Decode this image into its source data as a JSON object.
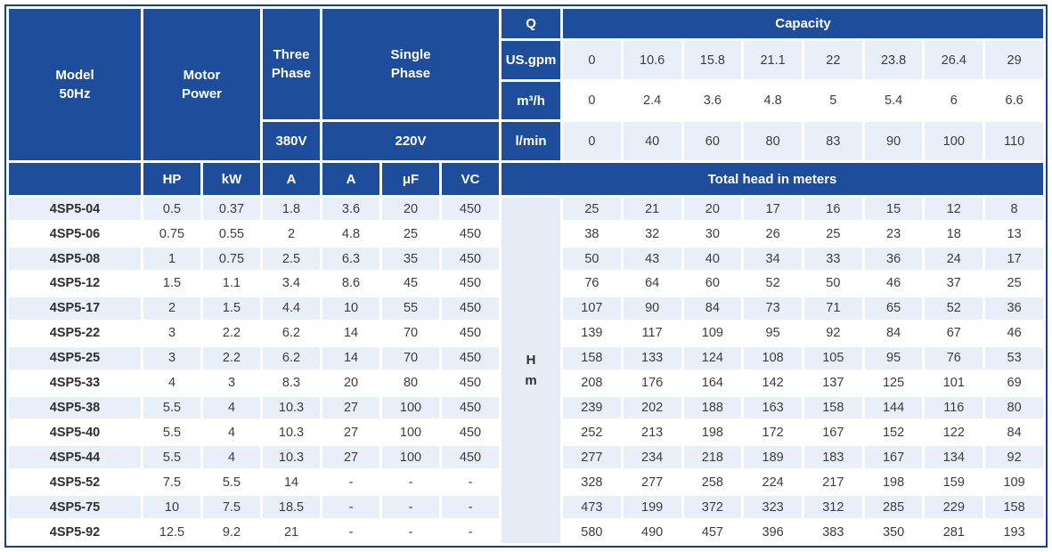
{
  "chart_data": {
    "type": "table",
    "header": {
      "model": [
        "Model",
        "50Hz"
      ],
      "motor_power": [
        "Motor",
        "Power"
      ],
      "three_phase": [
        "Three",
        "Phase"
      ],
      "three_phase_voltage": "380V",
      "single_phase": [
        "Single",
        "Phase"
      ],
      "single_phase_voltage": "220V",
      "q_label": "Q",
      "capacity_label": "Capacity",
      "subcolumns": [
        "HP",
        "kW",
        "A",
        "A",
        "μF",
        "VC"
      ],
      "total_head_label": "Total head in meters",
      "head_unit": [
        "H",
        "m"
      ]
    },
    "flow_rows": [
      {
        "unit": "US.gpm",
        "values": [
          "0",
          "10.6",
          "15.8",
          "21.1",
          "22",
          "23.8",
          "26.4",
          "29"
        ]
      },
      {
        "unit": "m³/h",
        "values": [
          "0",
          "2.4",
          "3.6",
          "4.8",
          "5",
          "5.4",
          "6",
          "6.6"
        ]
      },
      {
        "unit": "l/min",
        "values": [
          "0",
          "40",
          "60",
          "80",
          "83",
          "90",
          "100",
          "110"
        ]
      }
    ],
    "rows": [
      {
        "model": "4SP5-04",
        "hp": "0.5",
        "kw": "0.37",
        "a_380v": "1.8",
        "a_220v": "3.6",
        "uf": "20",
        "vc": "450",
        "head_m": [
          "25",
          "21",
          "20",
          "17",
          "16",
          "15",
          "12",
          "8"
        ]
      },
      {
        "model": "4SP5-06",
        "hp": "0.75",
        "kw": "0.55",
        "a_380v": "2",
        "a_220v": "4.8",
        "uf": "25",
        "vc": "450",
        "head_m": [
          "38",
          "32",
          "30",
          "26",
          "25",
          "23",
          "18",
          "13"
        ]
      },
      {
        "model": "4SP5-08",
        "hp": "1",
        "kw": "0.75",
        "a_380v": "2.5",
        "a_220v": "6.3",
        "uf": "35",
        "vc": "450",
        "head_m": [
          "50",
          "43",
          "40",
          "34",
          "33",
          "36",
          "24",
          "17"
        ]
      },
      {
        "model": "4SP5-12",
        "hp": "1.5",
        "kw": "1.1",
        "a_380v": "3.4",
        "a_220v": "8.6",
        "uf": "45",
        "vc": "450",
        "head_m": [
          "76",
          "64",
          "60",
          "52",
          "50",
          "46",
          "37",
          "25"
        ]
      },
      {
        "model": "4SP5-17",
        "hp": "2",
        "kw": "1.5",
        "a_380v": "4.4",
        "a_220v": "10",
        "uf": "55",
        "vc": "450",
        "head_m": [
          "107",
          "90",
          "84",
          "73",
          "71",
          "65",
          "52",
          "36"
        ]
      },
      {
        "model": "4SP5-22",
        "hp": "3",
        "kw": "2.2",
        "a_380v": "6.2",
        "a_220v": "14",
        "uf": "70",
        "vc": "450",
        "head_m": [
          "139",
          "117",
          "109",
          "95",
          "92",
          "84",
          "67",
          "46"
        ]
      },
      {
        "model": "4SP5-25",
        "hp": "3",
        "kw": "2.2",
        "a_380v": "6.2",
        "a_220v": "14",
        "uf": "70",
        "vc": "450",
        "head_m": [
          "158",
          "133",
          "124",
          "108",
          "105",
          "95",
          "76",
          "53"
        ]
      },
      {
        "model": "4SP5-33",
        "hp": "4",
        "kw": "3",
        "a_380v": "8.3",
        "a_220v": "20",
        "uf": "80",
        "vc": "450",
        "head_m": [
          "208",
          "176",
          "164",
          "142",
          "137",
          "125",
          "101",
          "69"
        ]
      },
      {
        "model": "4SP5-38",
        "hp": "5.5",
        "kw": "4",
        "a_380v": "10.3",
        "a_220v": "27",
        "uf": "100",
        "vc": "450",
        "head_m": [
          "239",
          "202",
          "188",
          "163",
          "158",
          "144",
          "116",
          "80"
        ]
      },
      {
        "model": "4SP5-40",
        "hp": "5.5",
        "kw": "4",
        "a_380v": "10.3",
        "a_220v": "27",
        "uf": "100",
        "vc": "450",
        "head_m": [
          "252",
          "213",
          "198",
          "172",
          "167",
          "152",
          "122",
          "84"
        ]
      },
      {
        "model": "4SP5-44",
        "hp": "5.5",
        "kw": "4",
        "a_380v": "10.3",
        "a_220v": "27",
        "uf": "100",
        "vc": "450",
        "head_m": [
          "277",
          "234",
          "218",
          "189",
          "183",
          "167",
          "134",
          "92"
        ]
      },
      {
        "model": "4SP5-52",
        "hp": "7.5",
        "kw": "5.5",
        "a_380v": "14",
        "a_220v": "-",
        "uf": "-",
        "vc": "-",
        "head_m": [
          "328",
          "277",
          "258",
          "224",
          "217",
          "198",
          "159",
          "109"
        ]
      },
      {
        "model": "4SP5-75",
        "hp": "10",
        "kw": "7.5",
        "a_380v": "18.5",
        "a_220v": "-",
        "uf": "-",
        "vc": "-",
        "head_m": [
          "473",
          "199",
          "372",
          "323",
          "312",
          "285",
          "229",
          "158"
        ]
      },
      {
        "model": "4SP5-92",
        "hp": "12.5",
        "kw": "9.2",
        "a_380v": "21",
        "a_220v": "-",
        "uf": "-",
        "vc": "-",
        "head_m": [
          "580",
          "490",
          "457",
          "396",
          "383",
          "350",
          "281",
          "193"
        ]
      }
    ]
  },
  "colors": {
    "header_blue": "#1e4e9b",
    "stripe_blue": "#e9eff8",
    "hm_bg": "#e5ecf6",
    "border_navy": "#16418c",
    "text_dark": "#3c3c3c",
    "header_text": "#ffffff"
  }
}
